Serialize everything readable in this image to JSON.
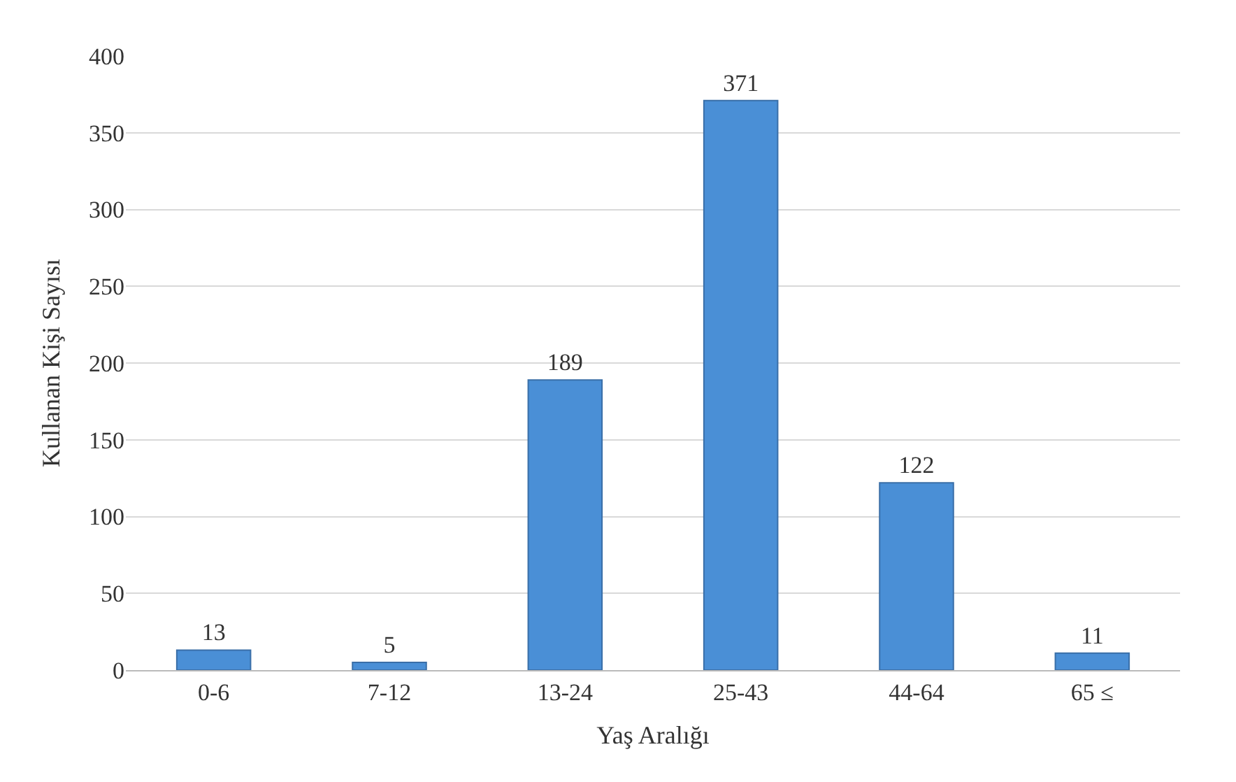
{
  "chart_data": {
    "type": "bar",
    "xlabel": "Yaş Aralığı",
    "ylabel": "Kullanan Kişi Sayısı",
    "categories": [
      "0-6",
      "7-12",
      "13-24",
      "25-43",
      "44-64",
      "65 ≤"
    ],
    "values": [
      13,
      5,
      189,
      371,
      122,
      11
    ],
    "color": "#4a8fd6",
    "ylim": [
      0,
      400
    ],
    "yticks": [
      0,
      50,
      100,
      150,
      200,
      250,
      300,
      350,
      400
    ],
    "grid": "y",
    "data_labels": true
  }
}
